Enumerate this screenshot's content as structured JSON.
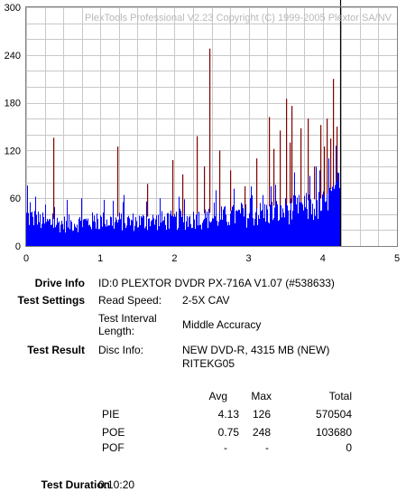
{
  "chart_data": {
    "type": "bar",
    "watermark": "PlexTools Professional V2.23 Copyright (C) 1999-2005 Plextor SA/NV",
    "xlim": [
      0,
      5
    ],
    "ylim": [
      0,
      300
    ],
    "x_ticks": [
      "0",
      "1",
      "2",
      "3",
      "4",
      "5"
    ],
    "y_ticks": [
      "0",
      "60",
      "120",
      "180",
      "240",
      "300"
    ],
    "grid": true,
    "disc_end": 4.23,
    "colors": {
      "pie": "#0000ff",
      "poe": "#800000",
      "end_line": "#000000",
      "grid": "#c8c8c8"
    },
    "pie_profile": [
      [
        0.0,
        40
      ],
      [
        0.25,
        32
      ],
      [
        0.5,
        30
      ],
      [
        1.0,
        34
      ],
      [
        1.5,
        33
      ],
      [
        2.0,
        35
      ],
      [
        2.5,
        38
      ],
      [
        3.0,
        42
      ],
      [
        3.5,
        48
      ],
      [
        4.0,
        55
      ],
      [
        4.23,
        78
      ]
    ],
    "pie_spikes": [
      [
        0.01,
        76
      ],
      [
        0.05,
        55
      ],
      [
        0.12,
        62
      ],
      [
        0.25,
        52
      ],
      [
        0.55,
        58
      ],
      [
        0.74,
        60
      ],
      [
        1.05,
        58
      ],
      [
        1.3,
        55
      ],
      [
        1.62,
        56
      ],
      [
        1.8,
        60
      ],
      [
        2.05,
        62
      ],
      [
        2.3,
        68
      ],
      [
        2.55,
        70
      ],
      [
        2.8,
        72
      ],
      [
        2.95,
        68
      ],
      [
        3.1,
        70
      ],
      [
        3.3,
        75
      ],
      [
        3.5,
        80
      ],
      [
        3.7,
        85
      ],
      [
        3.82,
        88
      ],
      [
        3.95,
        95
      ],
      [
        4.08,
        110
      ],
      [
        4.17,
        126
      ]
    ],
    "poe_spikes": [
      [
        0.36,
        136
      ],
      [
        1.23,
        125
      ],
      [
        1.63,
        78
      ],
      [
        1.97,
        108
      ],
      [
        2.1,
        90
      ],
      [
        2.3,
        138
      ],
      [
        2.4,
        100
      ],
      [
        2.47,
        248
      ],
      [
        2.6,
        120
      ],
      [
        2.75,
        95
      ],
      [
        2.95,
        75
      ],
      [
        3.1,
        110
      ],
      [
        3.27,
        162
      ],
      [
        3.33,
        122
      ],
      [
        3.42,
        145
      ],
      [
        3.5,
        185
      ],
      [
        3.55,
        130
      ],
      [
        3.58,
        176
      ],
      [
        3.7,
        148
      ],
      [
        3.8,
        160
      ],
      [
        3.88,
        100
      ],
      [
        3.96,
        152
      ],
      [
        4.02,
        125
      ],
      [
        4.05,
        160
      ],
      [
        4.1,
        135
      ],
      [
        4.14,
        210
      ],
      [
        4.19,
        150
      ]
    ]
  },
  "drive_info": {
    "label": "Drive Info",
    "value": "ID:0 PLEXTOR DVDR PX-716A V1.07 (#538633)"
  },
  "test_settings": {
    "label": "Test Settings",
    "read_speed_label": "Read Speed:",
    "read_speed_value": "2-5X CAV",
    "interval_label_line1": "Test Interval",
    "interval_label_line2": "Length:",
    "interval_value": "Middle Accuracy"
  },
  "test_result": {
    "label": "Test Result",
    "disc_info_label": "Disc Info:",
    "disc_info_line1": "NEW DVD-R, 4315 MB (NEW)",
    "disc_info_line2": "RITEKG05"
  },
  "stats": {
    "headers": [
      "Avg",
      "Max",
      "Total"
    ],
    "rows": [
      {
        "name": "PIE",
        "avg": "4.13",
        "max": "126",
        "total": "570504"
      },
      {
        "name": "POE",
        "avg": "0.75",
        "max": "248",
        "total": "103680"
      },
      {
        "name": "POF",
        "avg": "-",
        "max": "-",
        "total": "0"
      }
    ]
  },
  "test_duration": {
    "label": "Test Duration",
    "value": "0:10:20"
  }
}
